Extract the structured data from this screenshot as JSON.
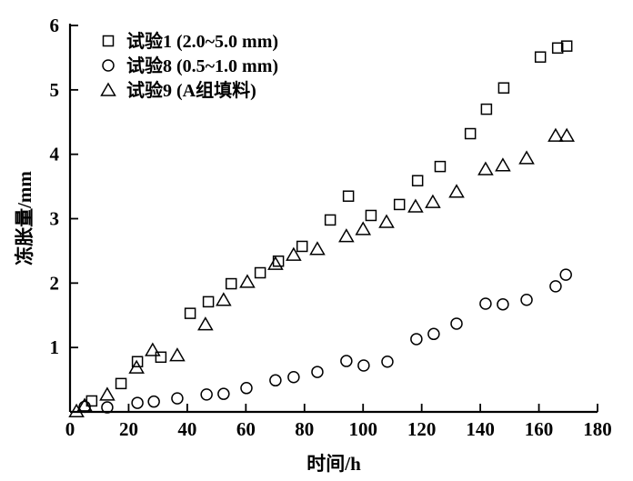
{
  "chart_data": {
    "type": "scatter",
    "title": "",
    "xlabel": "时间/h",
    "ylabel": "冻胀量/mm",
    "xlim": [
      0,
      180
    ],
    "ylim": [
      0,
      6
    ],
    "xticks": [
      0,
      20,
      40,
      60,
      80,
      100,
      120,
      140,
      160,
      180
    ],
    "yticks": [
      1,
      2,
      3,
      4,
      5,
      6
    ],
    "xtick_labels": [
      "0",
      "20",
      "40",
      "60",
      "80",
      "100",
      "120",
      "140",
      "160",
      "180"
    ],
    "ytick_labels": [
      "1",
      "2",
      "3",
      "4",
      "5",
      "6"
    ],
    "grid": false,
    "legend_position": "top-left",
    "series": [
      {
        "name": "试验1 (2.0~5.0 mm)",
        "marker": "square",
        "x": [
          7.4,
          17.4,
          23.0,
          31.0,
          41.0,
          47.2,
          55.0,
          64.9,
          71.1,
          79.2,
          88.8,
          95.0,
          102.7,
          112.4,
          118.6,
          126.3,
          136.6,
          142.1,
          148.0,
          160.5,
          166.4,
          169.5
        ],
        "y": [
          0.17,
          0.44,
          0.78,
          0.85,
          1.53,
          1.71,
          1.99,
          2.16,
          2.34,
          2.57,
          2.98,
          3.35,
          3.05,
          3.22,
          3.59,
          3.81,
          4.32,
          4.7,
          5.03,
          5.51,
          5.65,
          5.68
        ]
      },
      {
        "name": "试验8 (0.5~1.0 mm)",
        "marker": "circle",
        "x": [
          5.0,
          12.7,
          23.0,
          28.6,
          36.6,
          46.6,
          52.4,
          60.2,
          70.1,
          76.3,
          84.4,
          94.3,
          100.2,
          108.3,
          118.2,
          124.1,
          131.9,
          141.8,
          147.7,
          155.8,
          165.7,
          169.2
        ],
        "y": [
          0.08,
          0.07,
          0.14,
          0.16,
          0.21,
          0.27,
          0.28,
          0.37,
          0.49,
          0.54,
          0.62,
          0.79,
          0.72,
          0.78,
          1.13,
          1.21,
          1.37,
          1.68,
          1.67,
          1.74,
          1.95,
          2.13
        ]
      },
      {
        "name": "试验9 (A组填料)",
        "marker": "triangle",
        "x": [
          2.2,
          5.0,
          12.7,
          22.7,
          28.2,
          36.6,
          46.2,
          52.4,
          60.5,
          70.1,
          76.3,
          84.4,
          94.3,
          100.0,
          108.0,
          117.9,
          123.8,
          131.9,
          141.8,
          147.7,
          155.8,
          165.7,
          169.5
        ],
        "y": [
          0.01,
          0.1,
          0.27,
          0.69,
          0.96,
          0.88,
          1.36,
          1.74,
          2.02,
          2.3,
          2.44,
          2.53,
          2.73,
          2.84,
          2.95,
          3.19,
          3.26,
          3.42,
          3.77,
          3.83,
          3.94,
          4.29,
          4.29
        ]
      }
    ]
  }
}
